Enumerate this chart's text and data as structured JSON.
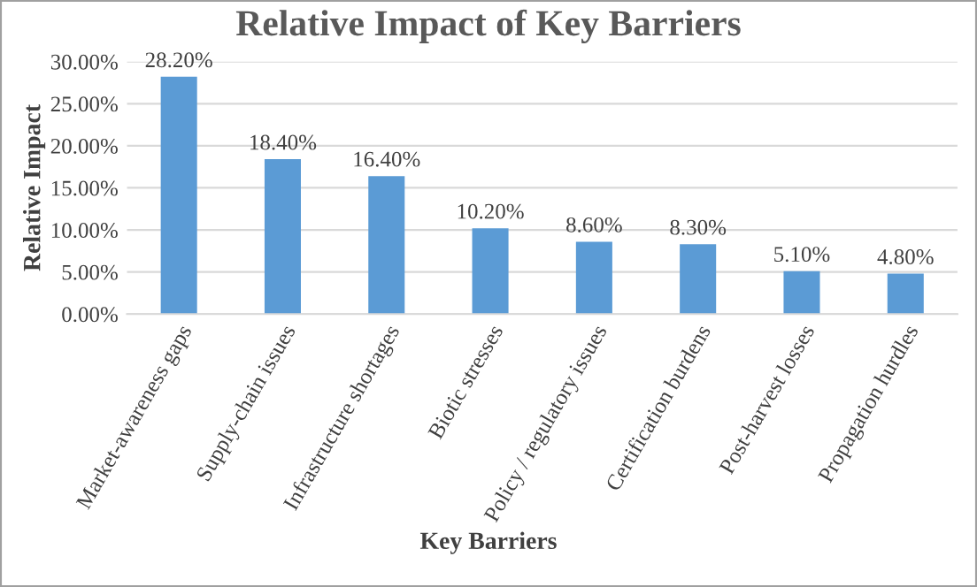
{
  "chart_data": {
    "type": "bar",
    "title": "Relative Impact of Key Barriers",
    "xlabel": "Key Barriers",
    "ylabel": "Relative Impact",
    "categories": [
      "Market-awareness gaps",
      "Supply-chain issues",
      "Infrastructure shortages",
      "Biotic stresses",
      "Policy / regulatory issues",
      "Certification burdens",
      "Post-harvest losses",
      "Propagation hurdles"
    ],
    "values": [
      28.2,
      18.4,
      16.4,
      10.2,
      8.6,
      8.3,
      5.1,
      4.8
    ],
    "value_labels": [
      "28.20%",
      "18.40%",
      "16.40%",
      "10.20%",
      "8.60%",
      "8.30%",
      "5.10%",
      "4.80%"
    ],
    "color": "#5b9bd5",
    "ylim": [
      0,
      30
    ],
    "yticks": [
      {
        "value": 0,
        "label": "0.00%"
      },
      {
        "value": 5,
        "label": "5.00%"
      },
      {
        "value": 10,
        "label": "10.00%"
      },
      {
        "value": 15,
        "label": "15.00%"
      },
      {
        "value": 20,
        "label": "20.00%"
      },
      {
        "value": 25,
        "label": "25.00%"
      },
      {
        "value": 30,
        "label": "30.00%"
      }
    ],
    "grid": "y",
    "legend": false
  }
}
